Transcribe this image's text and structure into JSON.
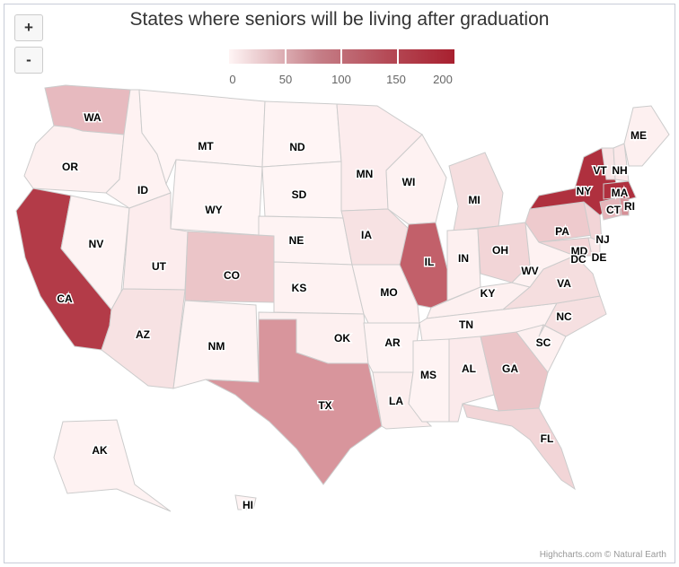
{
  "title": "States where seniors will be living after graduation",
  "zoom": {
    "in_label": "+",
    "out_label": "-"
  },
  "legend": {
    "ticks": [
      "0",
      "50",
      "100",
      "150",
      "200"
    ],
    "min": 0,
    "max": 200,
    "colors": {
      "low": "#fff5f5",
      "high": "#a8202f"
    }
  },
  "credits": "Highcharts.com © Natural Earth",
  "map_data": {
    "WA": 55,
    "OR": 5,
    "CA": 175,
    "ID": 3,
    "NV": 2,
    "MT": 0,
    "WY": 0,
    "UT": 8,
    "AZ": 18,
    "CO": 45,
    "NM": 2,
    "ND": 0,
    "SD": 0,
    "NE": 2,
    "KS": 3,
    "OK": 5,
    "TX": 90,
    "MN": 8,
    "IA": 18,
    "MO": 3,
    "AR": 2,
    "LA": 7,
    "WI": 3,
    "IL": 140,
    "MI": 22,
    "IN": 5,
    "OH": 30,
    "KY": 5,
    "TN": 3,
    "MS": 2,
    "AL": 10,
    "GA": 45,
    "FL": 30,
    "SC": 5,
    "NC": 20,
    "VA": 22,
    "WV": 3,
    "MD": 30,
    "DE": 12,
    "DC": 14,
    "PA": 40,
    "NJ": 30,
    "NY": 185,
    "CT": 60,
    "RI": 95,
    "MA": 185,
    "VT": 15,
    "NH": 12,
    "ME": 5,
    "AK": 3,
    "HI": 2
  }
}
